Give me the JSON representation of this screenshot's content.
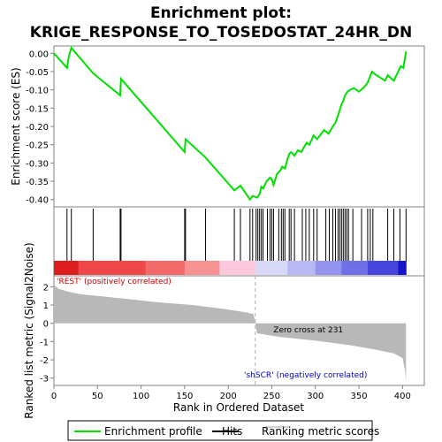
{
  "chart_data": {
    "type": "line",
    "title_line1": "Enrichment plot:",
    "title_line2": "KRIGE_RESPONSE_TO_TOSEDOSTAT_24HR_DN",
    "xlabel": "Rank in Ordered Dataset",
    "ylabel_top": "Enrichment score (ES)",
    "ylabel_bottom": "Ranked list metric (Signal2Noise)",
    "xlim": [
      0,
      425
    ],
    "x_ticks": [
      "0",
      "50",
      "100",
      "150",
      "200",
      "250",
      "300",
      "350",
      "400"
    ],
    "x_tick_values": [
      0,
      50,
      100,
      150,
      200,
      250,
      300,
      350,
      400
    ],
    "es_ylim": [
      -0.42,
      0.02
    ],
    "es_ticks": [
      "0.00",
      "-0.05",
      "-0.10",
      "-0.15",
      "-0.20",
      "-0.25",
      "-0.30",
      "-0.35",
      "-0.40"
    ],
    "es_tick_values": [
      0.0,
      -0.05,
      -0.1,
      -0.15,
      -0.2,
      -0.25,
      -0.3,
      -0.35,
      -0.4
    ],
    "metric_ylim": [
      -3.4,
      2.6
    ],
    "metric_ticks": [
      "2",
      "1",
      "0",
      "-1",
      "-2",
      "-3"
    ],
    "metric_tick_values": [
      2,
      1,
      0,
      -1,
      -2,
      -3
    ],
    "enrichment_profile": {
      "x": [
        0,
        15,
        17,
        20,
        45,
        76,
        77,
        150,
        151,
        174,
        207,
        214,
        225,
        228,
        233,
        236,
        238,
        240,
        244,
        246,
        248,
        250,
        252,
        256,
        258,
        260,
        262,
        265,
        268,
        270,
        272,
        276,
        280,
        284,
        286,
        290,
        293,
        298,
        302,
        310,
        315,
        320,
        323,
        326,
        328,
        330,
        332,
        334,
        337,
        340,
        344,
        350,
        357,
        360,
        365,
        370,
        380,
        383,
        390,
        394,
        398,
        401,
        404
      ],
      "y": [
        0.0,
        -0.04,
        -0.01,
        0.015,
        -0.055,
        -0.115,
        -0.07,
        -0.27,
        -0.235,
        -0.285,
        -0.375,
        -0.362,
        -0.4,
        -0.39,
        -0.395,
        -0.385,
        -0.365,
        -0.37,
        -0.35,
        -0.345,
        -0.34,
        -0.345,
        -0.36,
        -0.33,
        -0.325,
        -0.32,
        -0.31,
        -0.315,
        -0.29,
        -0.275,
        -0.27,
        -0.28,
        -0.265,
        -0.27,
        -0.26,
        -0.245,
        -0.25,
        -0.225,
        -0.235,
        -0.21,
        -0.22,
        -0.2,
        -0.19,
        -0.17,
        -0.155,
        -0.14,
        -0.13,
        -0.115,
        -0.105,
        -0.1,
        -0.095,
        -0.105,
        -0.09,
        -0.08,
        -0.05,
        -0.06,
        -0.075,
        -0.06,
        -0.075,
        -0.055,
        -0.035,
        -0.04,
        0.005
      ]
    },
    "hits": [
      15,
      20,
      45,
      76,
      77,
      150,
      151,
      174,
      207,
      214,
      225,
      228,
      232,
      234,
      236,
      238,
      240,
      245,
      248,
      250,
      252,
      258,
      261,
      263,
      265,
      270,
      272,
      276,
      285,
      289,
      293,
      298,
      302,
      312,
      316,
      320,
      323,
      326,
      328,
      330,
      332,
      334,
      336,
      338,
      343,
      353,
      360,
      363,
      366,
      383,
      390,
      397,
      404
    ],
    "ranking_metric": {
      "x": [
        0,
        5,
        15,
        30,
        50,
        80,
        120,
        160,
        200,
        220,
        229,
        231,
        233,
        260,
        300,
        340,
        370,
        390,
        400,
        403,
        404
      ],
      "y": [
        2.1,
        1.9,
        1.75,
        1.6,
        1.5,
        1.35,
        1.15,
        1.0,
        0.75,
        0.6,
        0.5,
        0.0,
        -0.55,
        -0.75,
        -0.95,
        -1.2,
        -1.45,
        -1.65,
        -1.9,
        -2.6,
        -3.2
      ]
    },
    "zero_cross_x": 231,
    "zero_cross_label": "Zero cross at 231",
    "positive_label": "'REST' (positively correlated)",
    "negative_label": "'shSCR' (negatively correlated)",
    "colors": {
      "profile": "#00e000",
      "hits": "#000000",
      "metric_fill": "#b8b8b8",
      "positive_text": "#cc0000",
      "negative_text": "#0000cc",
      "zero_line": "#c0c0c0"
    },
    "heat_bar": [
      {
        "from": 0,
        "to": 28,
        "color": "#dd1e1e"
      },
      {
        "from": 28,
        "to": 105,
        "color": "#ee4848"
      },
      {
        "from": 105,
        "to": 150,
        "color": "#f36a6a"
      },
      {
        "from": 150,
        "to": 190,
        "color": "#f79292"
      },
      {
        "from": 190,
        "to": 231,
        "color": "#fbc8dc"
      },
      {
        "from": 231,
        "to": 268,
        "color": "#d8d8f8"
      },
      {
        "from": 268,
        "to": 300,
        "color": "#b8b8f4"
      },
      {
        "from": 300,
        "to": 330,
        "color": "#9494ee"
      },
      {
        "from": 330,
        "to": 360,
        "color": "#7070e6"
      },
      {
        "from": 360,
        "to": 395,
        "color": "#4646dc"
      },
      {
        "from": 395,
        "to": 404,
        "color": "#1616c8"
      }
    ],
    "legend": [
      {
        "label": "Enrichment profile",
        "kind": "line",
        "color": "#00e000"
      },
      {
        "label": "Hits",
        "kind": "line",
        "color": "#000000"
      },
      {
        "label": "Ranking metric scores",
        "kind": "line",
        "color": "#c0c0c0"
      }
    ],
    "legend_placement": "bottom",
    "grid": false
  }
}
